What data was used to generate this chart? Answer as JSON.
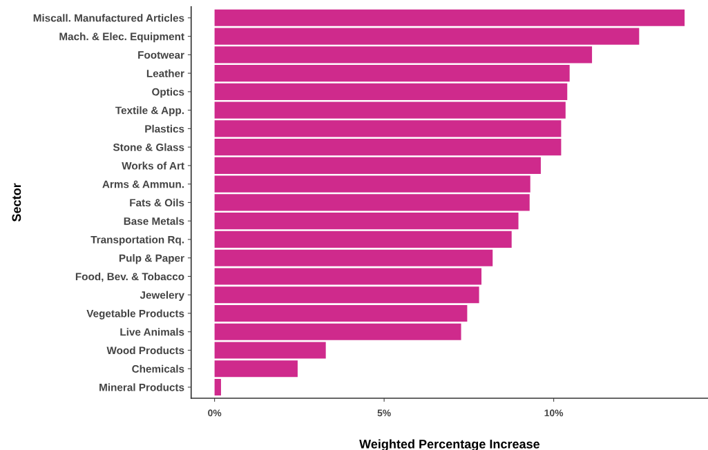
{
  "chart_data": {
    "type": "bar",
    "orientation": "horizontal",
    "xlabel": "Weighted Percentage Increase",
    "ylabel": "Sector",
    "categories": [
      "Miscall. Manufactured Articles",
      "Mach. & Elec. Equipment",
      "Footwear",
      "Leather",
      "Optics",
      "Textile & App.",
      "Plastics",
      "Stone & Glass",
      "Works of Art",
      "Arms & Ammun.",
      "Fats & Oils",
      "Base Metals",
      "Transportation Rq.",
      "Pulp & Paper",
      "Food, Bev. & Tobacco",
      "Jewelery",
      "Vegetable Products",
      "Live Animals",
      "Wood Products",
      "Chemicals",
      "Mineral Products"
    ],
    "values": [
      13.86,
      12.52,
      11.13,
      10.47,
      10.4,
      10.35,
      10.22,
      10.22,
      9.62,
      9.31,
      9.29,
      8.96,
      8.76,
      8.2,
      7.87,
      7.8,
      7.45,
      7.27,
      3.28,
      2.45,
      0.19
    ],
    "color": "#cf2a8c",
    "xlim": [
      -0.69,
      14.55
    ],
    "xticks": [
      {
        "value": 0,
        "label": "0%"
      },
      {
        "value": 5,
        "label": "5%"
      },
      {
        "value": 10,
        "label": "10%"
      }
    ],
    "grid": false
  }
}
